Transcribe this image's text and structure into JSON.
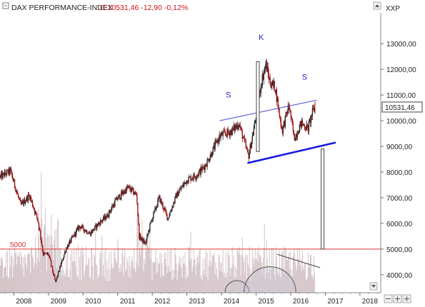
{
  "header": {
    "title": "DAX PERFORMANCE-INDEX",
    "quote": "C:10531,46 -12,90 -0,12%",
    "symbol": "XXP"
  },
  "colors": {
    "up": "#2a2a2a",
    "down": "#a01818",
    "volume": "#d4c4c8",
    "support": "#1a1ae0",
    "neckline": "#5a5ad8",
    "level_line": "#e03030",
    "annotation": "#2222cc"
  },
  "chart_data": {
    "type": "candlestick",
    "title": "DAX PERFORMANCE-INDEX",
    "xlim": [
      2007.6,
      2018.6
    ],
    "ylim": [
      3300,
      14200
    ],
    "y_ticks": [
      4000,
      5000,
      6000,
      7000,
      8000,
      9000,
      10000,
      11000,
      12000,
      13000
    ],
    "y_tick_labels": [
      "4000,00",
      "5000,00",
      "6000,00",
      "7000,00",
      "8000,00",
      "9000,00",
      "10000,00",
      "11000,00",
      "12000,00",
      "13000,00"
    ],
    "x_ticks": [
      2008,
      2009,
      2010,
      2011,
      2012,
      2013,
      2014,
      2015,
      2016,
      2017,
      2018
    ],
    "last_value": 10531.46,
    "last_value_label": "10531,46",
    "price_anchors": [
      [
        2007.6,
        7800
      ],
      [
        2007.9,
        8050
      ],
      [
        2008.0,
        7600
      ],
      [
        2008.2,
        6700
      ],
      [
        2008.45,
        7100
      ],
      [
        2008.7,
        6100
      ],
      [
        2008.85,
        4800
      ],
      [
        2009.0,
        4800
      ],
      [
        2009.2,
        3700
      ],
      [
        2009.5,
        5000
      ],
      [
        2009.9,
        5900
      ],
      [
        2010.2,
        5600
      ],
      [
        2010.45,
        6000
      ],
      [
        2010.7,
        6300
      ],
      [
        2010.95,
        6900
      ],
      [
        2011.3,
        7400
      ],
      [
        2011.55,
        7100
      ],
      [
        2011.62,
        5500
      ],
      [
        2011.8,
        5200
      ],
      [
        2011.95,
        6000
      ],
      [
        2012.2,
        7000
      ],
      [
        2012.45,
        6200
      ],
      [
        2012.7,
        7100
      ],
      [
        2013.0,
        7700
      ],
      [
        2013.3,
        7900
      ],
      [
        2013.55,
        8300
      ],
      [
        2013.95,
        9400
      ],
      [
        2014.3,
        9600
      ],
      [
        2014.5,
        9900
      ],
      [
        2014.78,
        8600
      ],
      [
        2014.95,
        9800
      ],
      [
        2015.15,
        11500
      ],
      [
        2015.28,
        12200
      ],
      [
        2015.4,
        11500
      ],
      [
        2015.55,
        11300
      ],
      [
        2015.75,
        9600
      ],
      [
        2015.95,
        10600
      ],
      [
        2016.1,
        9300
      ],
      [
        2016.3,
        9900
      ],
      [
        2016.5,
        9700
      ],
      [
        2016.62,
        10300
      ],
      [
        2016.7,
        10531
      ]
    ],
    "volume_scale_max": 2600,
    "level_line": {
      "value": 5000,
      "label": "5000"
    },
    "neckline": {
      "from": [
        2013.95,
        10000
      ],
      "to": [
        2016.75,
        10800
      ]
    },
    "support_line": {
      "from": [
        2014.75,
        8350
      ],
      "to": [
        2017.3,
        9150
      ]
    },
    "target_bars": [
      {
        "x": 2015.05,
        "from": 8800,
        "to": 12300
      },
      {
        "x": 2016.92,
        "from": 5000,
        "to": 8900
      }
    ],
    "annotations": [
      {
        "text": "S",
        "x": 2014.2,
        "y": 10900
      },
      {
        "text": "K",
        "x": 2015.15,
        "y": 13150
      },
      {
        "text": "S",
        "x": 2016.4,
        "y": 11600
      }
    ],
    "volume_arcs": [
      {
        "cx": 2014.45,
        "r": 0.35
      },
      {
        "cx": 2015.4,
        "r": 0.75
      }
    ],
    "volume_trend": {
      "from": [
        2015.6,
        2000
      ],
      "to": [
        2016.85,
        1300
      ]
    }
  }
}
